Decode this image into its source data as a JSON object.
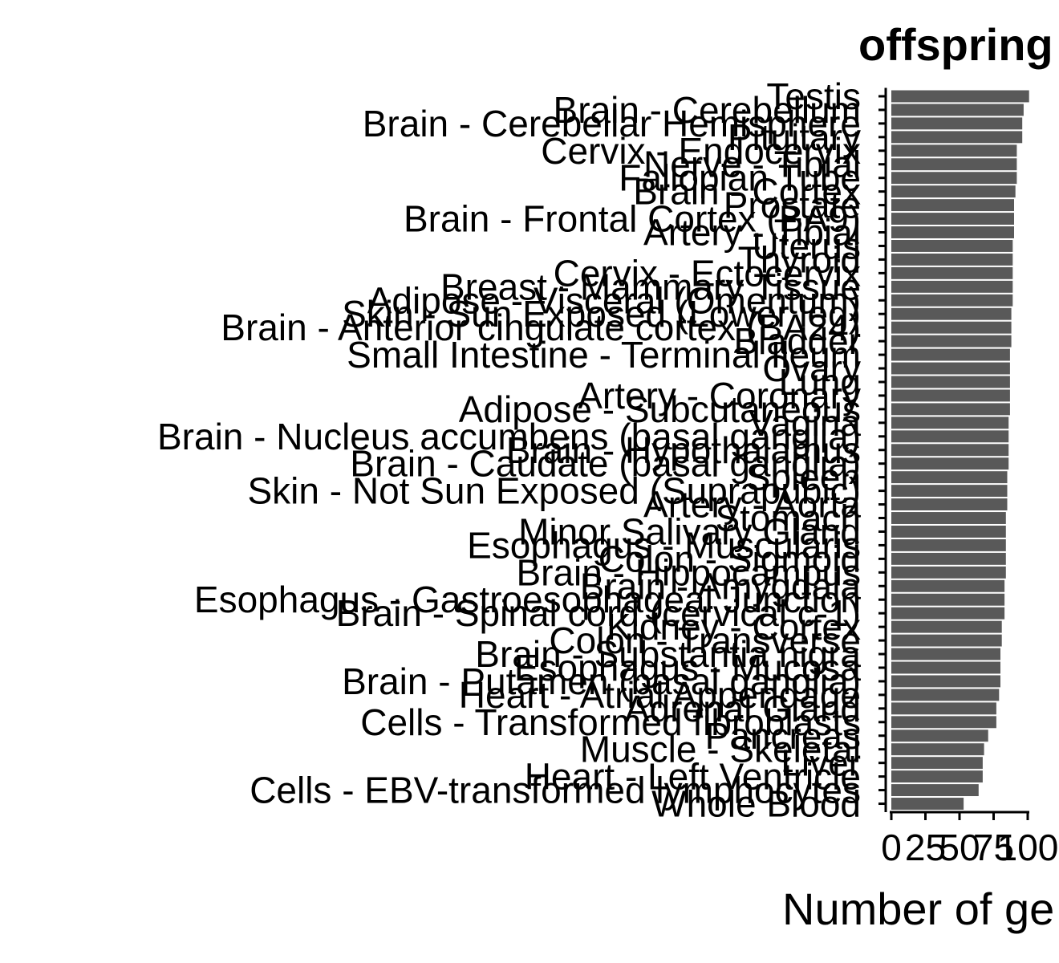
{
  "chart_data": {
    "type": "bar",
    "orientation": "horizontal",
    "title": "offspring",
    "xlabel": "Number of ge",
    "ylabel": "",
    "xlim": [
      0,
      100
    ],
    "xticks": [
      0,
      25,
      50,
      75,
      100
    ],
    "xtick_labels": [
      "0",
      "25",
      "50",
      "75",
      "100"
    ],
    "bar_color": "#595959",
    "grid": false,
    "categories": [
      "Testis",
      "Brain - Cerebellum",
      "Brain - Cerebellar Hemisphere",
      "Pituitary",
      "Cervix - Endocervix",
      "Nerve - Tibial",
      "Fallopian Tube",
      "Brain - Cortex",
      "Prostate",
      "Brain - Frontal Cortex (BA9)",
      "Artery - Tibial",
      "Uterus",
      "Thyroid",
      "Cervix - Ectocervix",
      "Breast - Mammary Tissue",
      "Adipose - Visceral (Omentum)",
      "Skin - Sun Exposed (Lower leg)",
      "Brain - Anterior cingulate cortex (BA24)",
      "Bladder",
      "Small Intestine - Terminal Ileum",
      "Ovary",
      "Lung",
      "Artery - Coronary",
      "Adipose - Subcutaneous",
      "Vagina",
      "Brain - Nucleus accumbens (basal ganglia)",
      "Brain - Hypothalamus",
      "Brain - Caudate (basal ganglia)",
      "Spleen",
      "Skin - Not Sun Exposed (Suprapubic)",
      "Artery - Aorta",
      "Stomach",
      "Minor Salivary Gland",
      "Esophagus - Muscularis",
      "Colon - Sigmoid",
      "Brain - Hippocampus",
      "Brain - Amygdala",
      "Esophagus - Gastroesophageal Junction",
      "Brain - Spinal cord (cervical c-1)",
      "Kidney - Cortex",
      "Colon - Transverse",
      "Brain - Substantia nigra",
      "Esophagus - Mucosa",
      "Brain - Putamen (basal ganglia)",
      "Heart - Atrial Appendage",
      "Adrenal Gland",
      "Cells - Transformed fibroblasts",
      "Pancreas",
      "Muscle - Skeletal",
      "Liver",
      "Heart - Left Ventricle",
      "Cells - EBV-transformed lymphocytes",
      "Whole Blood"
    ],
    "values": [
      101,
      97,
      96,
      96,
      92,
      92,
      92,
      91,
      90,
      90,
      90,
      89,
      89,
      89,
      89,
      89,
      88,
      88,
      88,
      87,
      87,
      87,
      87,
      87,
      86,
      86,
      86,
      86,
      85,
      85,
      85,
      84,
      84,
      84,
      84,
      84,
      83,
      83,
      83,
      81,
      81,
      80,
      80,
      80,
      79,
      77,
      77,
      71,
      68,
      67,
      67,
      64,
      53
    ]
  }
}
